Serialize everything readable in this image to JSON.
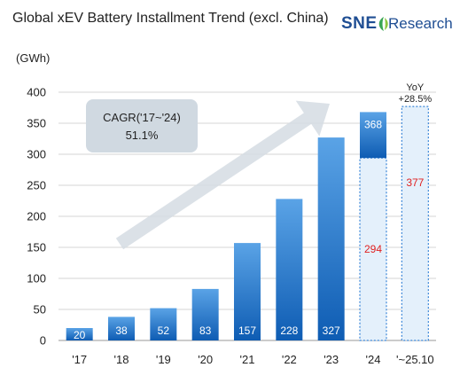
{
  "title": "Global xEV Battery Installment Trend (excl. China)",
  "logo": {
    "brand": "SNE",
    "suffix": "Research"
  },
  "unit_label": "(GWh)",
  "colors": {
    "bar_top": "#5aa3e6",
    "bar_bottom": "#0e5cb3",
    "dotted_outline": "#3a86d8",
    "dotted_fill": "#e4f0fb",
    "red_label": "#e02020",
    "arrow": "#d5dce3",
    "cagr_box": "#d0d9e1",
    "gridline": "#d6d6d6"
  },
  "cagr": {
    "line1": "CAGR('17~'24)",
    "line2": "51.1%"
  },
  "chart_data": {
    "type": "bar",
    "ylabel": "(GWh)",
    "ylim": [
      0,
      400
    ],
    "yticks": [
      0,
      50,
      100,
      150,
      200,
      250,
      300,
      350,
      400
    ],
    "grid": "horizontal",
    "categories": [
      "'17",
      "'18",
      "'19",
      "'20",
      "'21",
      "'22",
      "'23",
      "'24",
      "'~25.10"
    ],
    "values": [
      20,
      38,
      52,
      83,
      157,
      228,
      327,
      368,
      377
    ],
    "annotations": {
      "partial_2024": {
        "category": "'24",
        "value": 294,
        "total": 368
      },
      "ytd_2025": {
        "category": "'~25.10",
        "value": 377,
        "yoy_label": "YoY",
        "yoy_value": "+28.5%"
      }
    }
  }
}
